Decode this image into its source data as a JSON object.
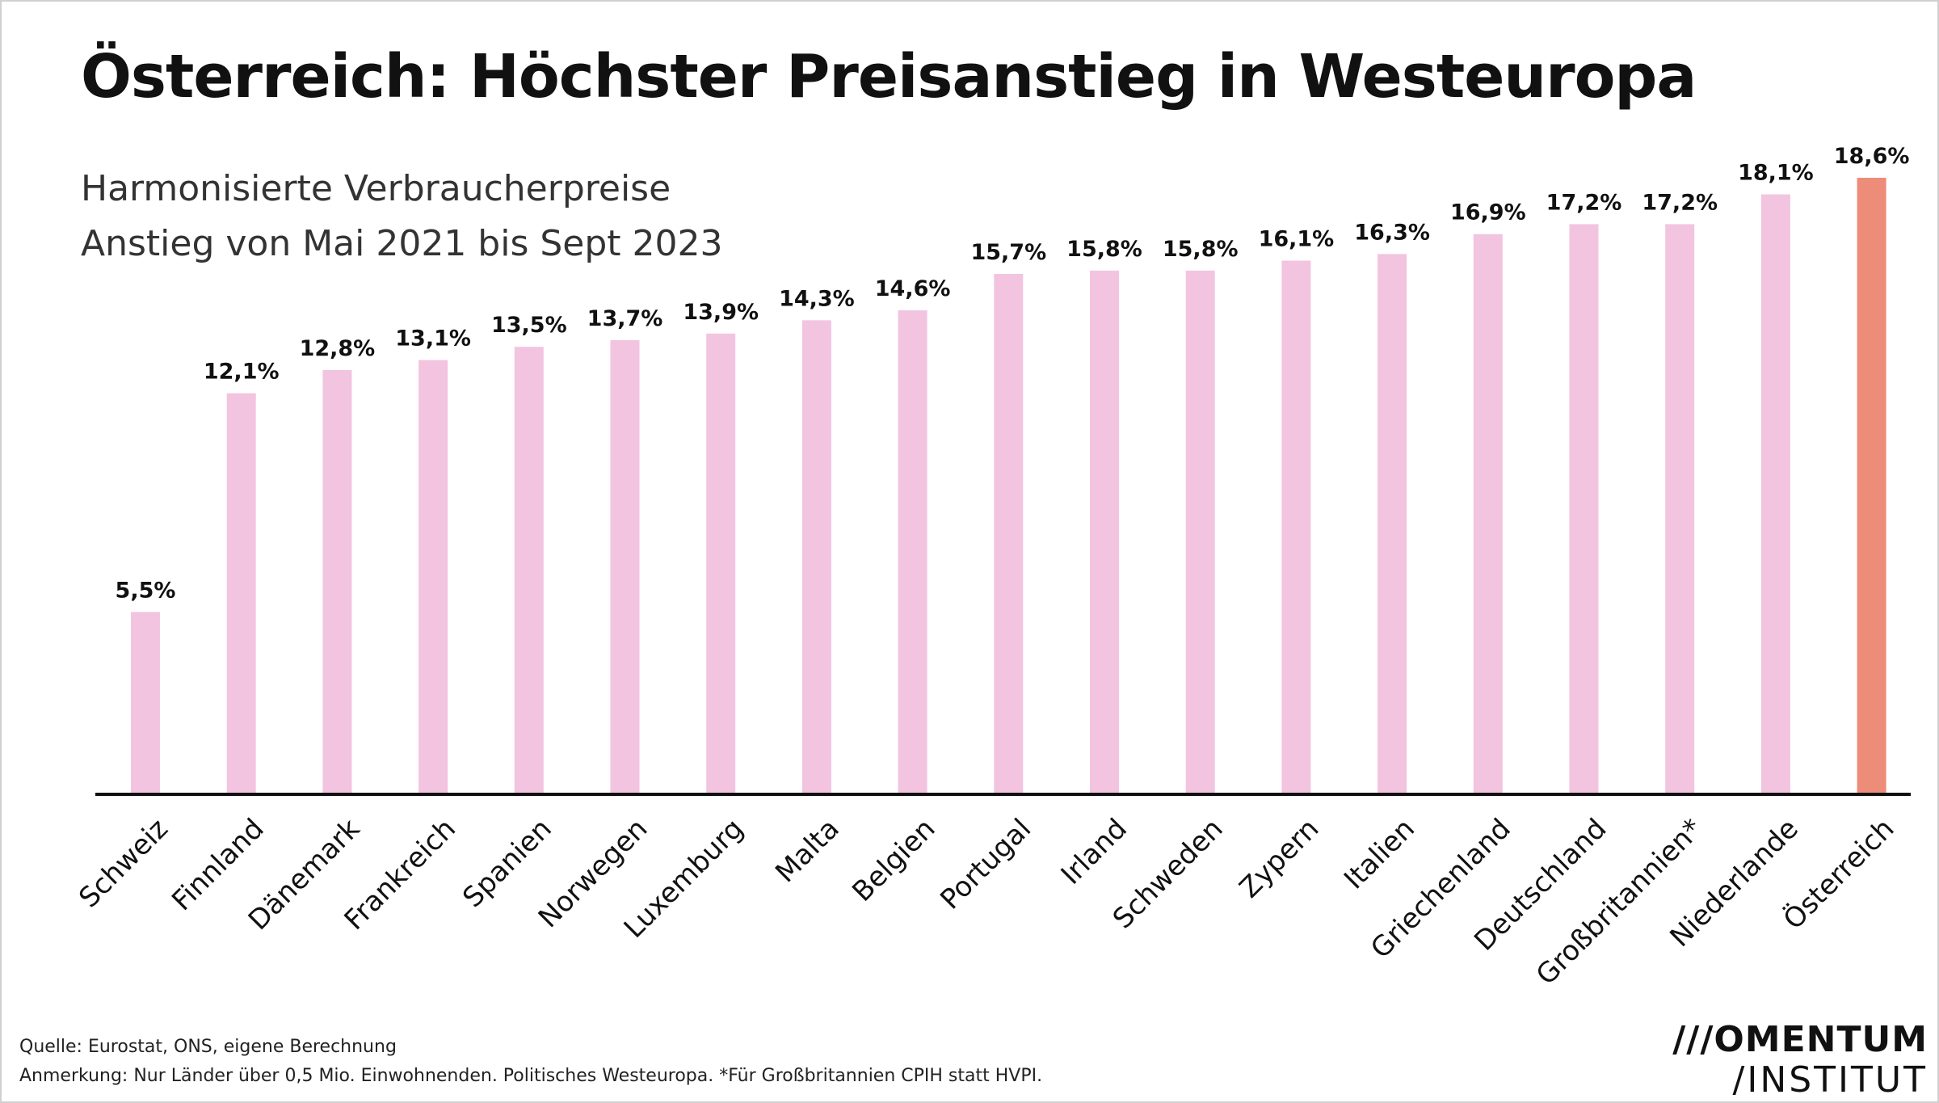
{
  "title": "Österreich: Höchster Preisanstieg in Westeuropa",
  "subtitle_line1": "Harmonisierte Verbraucherpreise",
  "subtitle_line2": "Anstieg von Mai 2021 bis Sept 2023",
  "chart_data": {
    "type": "bar",
    "title": "Österreich: Höchster Preisanstieg in Westeuropa",
    "xlabel": "",
    "ylabel": "",
    "ylim": [
      0,
      19
    ],
    "categories": [
      "Schweiz",
      "Finnland",
      "Dänemark",
      "Frankreich",
      "Spanien",
      "Norwegen",
      "Luxemburg",
      "Malta",
      "Belgien",
      "Portugal",
      "Irland",
      "Schweden",
      "Zypern",
      "Italien",
      "Griechenland",
      "Deutschland",
      "Großbritannien*",
      "Niederlande",
      "Österreich"
    ],
    "values": [
      5.5,
      12.1,
      12.8,
      13.1,
      13.5,
      13.7,
      13.9,
      14.3,
      14.6,
      15.7,
      15.8,
      15.8,
      16.1,
      16.3,
      16.9,
      17.2,
      17.2,
      18.1,
      18.6
    ],
    "labels": [
      "5,5%",
      "12,1%",
      "12,8%",
      "13,1%",
      "13,5%",
      "13,7%",
      "13,9%",
      "14,3%",
      "14,6%",
      "15,7%",
      "15,8%",
      "15,8%",
      "16,1%",
      "16,3%",
      "16,9%",
      "17,2%",
      "17,2%",
      "18,1%",
      "18,6%"
    ],
    "highlight": "Österreich",
    "colors": {
      "bar": "#f2c4df",
      "highlight": "#ed8c78",
      "axis": "#111111"
    },
    "grid": false,
    "legend": "none"
  },
  "footer": {
    "source": "Quelle: Eurostat, ONS, eigene Berechnung",
    "note": "Anmerkung: Nur Länder über 0,5 Mio. Einwohnenden. Politisches Westeuropa. *Für Großbritannien CPIH statt HVPI."
  },
  "logo": {
    "line1": "///OMENTUM",
    "line2": "/INSTITUT"
  }
}
